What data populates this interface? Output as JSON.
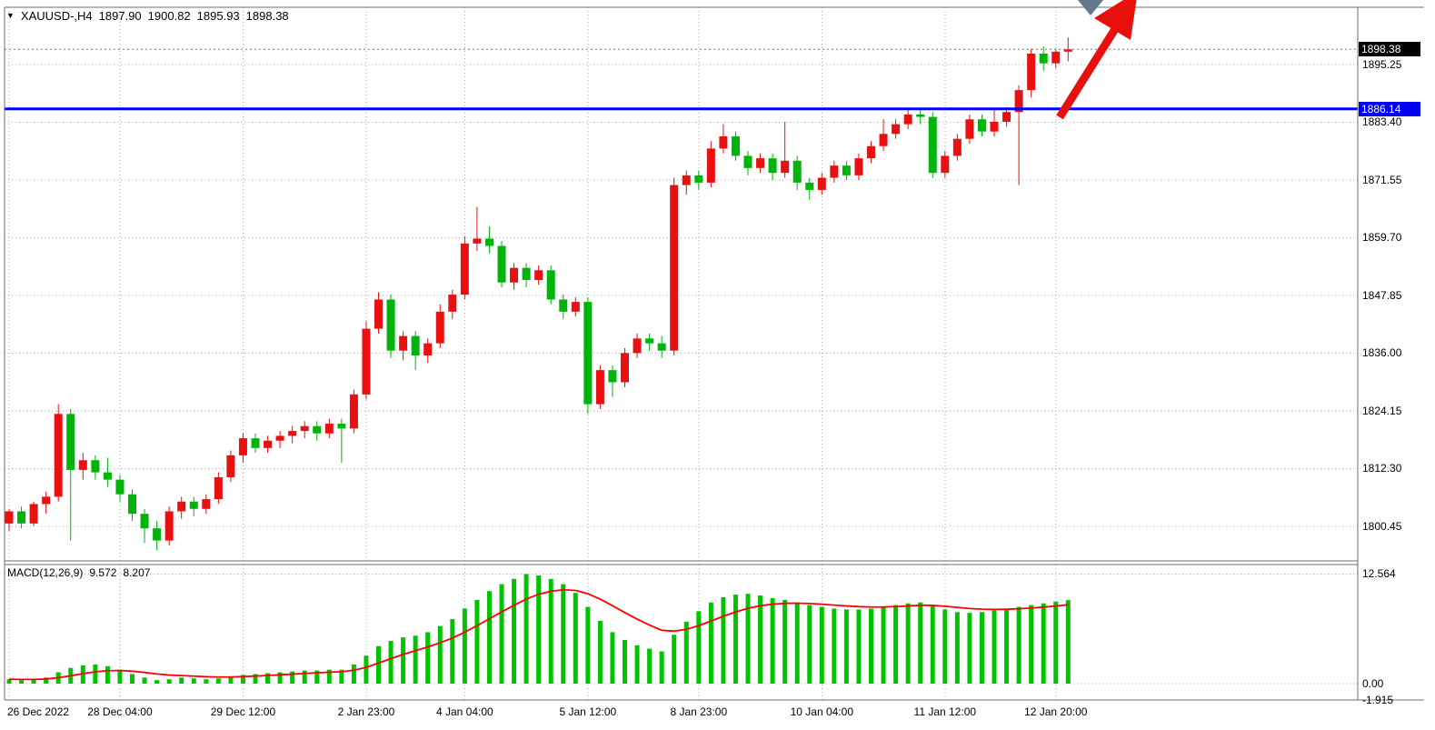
{
  "title": {
    "marker": "▼",
    "symbol_period": "XAUUSD-,H4",
    "open": "1897.90",
    "high": "1900.82",
    "low": "1895.93",
    "close": "1898.38"
  },
  "price_axis": {
    "current_price": "1898.38",
    "hline_price": "1886.14"
  },
  "macd": {
    "name_label": "MACD(12,26,9)",
    "macd_value": "9.572",
    "signal_value": "8.207",
    "axis_labels": [
      {
        "text": "12.564",
        "value": 12.564
      },
      {
        "text": "0.00",
        "value": 0
      },
      {
        "text": "-1.915",
        "value": -1.915
      }
    ]
  },
  "colors": {
    "bull_candle": "#e81010",
    "bear_candle": "#00b40c",
    "macd_histogram": "#00c400",
    "macd_signal": "#ff0000",
    "support_line": "#0000ff",
    "trend_arrow": "#e8100c",
    "current_price_badge": "#000000",
    "hline_badge": "#0000f0",
    "grid": "#a6a6a6"
  },
  "chart_data": {
    "type": "candlestick",
    "symbol": "XAUUSD-",
    "timeframe": "H4",
    "ohlc_current": {
      "open": 1897.9,
      "high": 1900.82,
      "low": 1895.93,
      "close": 1898.38
    },
    "current_price": 1898.38,
    "support_line_price": 1886.14,
    "price_gridlines": [
      1895.25,
      1883.4,
      1871.55,
      1859.7,
      1847.85,
      1836.0,
      1824.15,
      1812.3,
      1800.45
    ],
    "price_axis_range": [
      1793,
      1907
    ],
    "grid": "dotted",
    "candles": [
      [
        1801.0,
        1804.0,
        1799.5,
        1803.5
      ],
      [
        1803.5,
        1804.5,
        1800.0,
        1801.0
      ],
      [
        1801.0,
        1805.5,
        1800.5,
        1805.0
      ],
      [
        1805.0,
        1807.5,
        1803.0,
        1806.5
      ],
      [
        1806.5,
        1825.5,
        1805.5,
        1823.5
      ],
      [
        1823.5,
        1824.5,
        1797.5,
        1812.0
      ],
      [
        1812.0,
        1815.5,
        1810.0,
        1814.0
      ],
      [
        1814.0,
        1815.0,
        1810.0,
        1811.5
      ],
      [
        1811.5,
        1814.5,
        1808.5,
        1810.0
      ],
      [
        1810.0,
        1811.0,
        1805.5,
        1807.0
      ],
      [
        1807.0,
        1808.0,
        1801.5,
        1803.0
      ],
      [
        1803.0,
        1804.0,
        1797.0,
        1800.0
      ],
      [
        1800.0,
        1801.5,
        1795.5,
        1797.5
      ],
      [
        1797.5,
        1804.5,
        1796.5,
        1803.5
      ],
      [
        1803.5,
        1806.5,
        1802.0,
        1805.5
      ],
      [
        1805.5,
        1806.5,
        1802.5,
        1804.0
      ],
      [
        1804.0,
        1807.0,
        1803.0,
        1806.0
      ],
      [
        1806.0,
        1811.5,
        1805.0,
        1810.5
      ],
      [
        1810.5,
        1816.0,
        1809.5,
        1815.0
      ],
      [
        1815.0,
        1819.5,
        1813.5,
        1818.5
      ],
      [
        1818.5,
        1819.5,
        1815.5,
        1816.5
      ],
      [
        1816.5,
        1819.0,
        1815.5,
        1818.0
      ],
      [
        1818.0,
        1820.0,
        1816.5,
        1819.0
      ],
      [
        1819.0,
        1821.0,
        1817.5,
        1820.0
      ],
      [
        1820.0,
        1822.0,
        1818.5,
        1821.0
      ],
      [
        1821.0,
        1822.0,
        1818.0,
        1819.5
      ],
      [
        1819.5,
        1822.5,
        1818.5,
        1821.5
      ],
      [
        1821.5,
        1822.5,
        1813.5,
        1820.5
      ],
      [
        1820.5,
        1828.5,
        1819.5,
        1827.5
      ],
      [
        1827.5,
        1842.5,
        1826.5,
        1841.0
      ],
      [
        1841.0,
        1848.5,
        1840.0,
        1847.0
      ],
      [
        1847.0,
        1848.0,
        1835.0,
        1836.5
      ],
      [
        1836.5,
        1840.5,
        1834.5,
        1839.5
      ],
      [
        1839.5,
        1840.5,
        1832.5,
        1835.5
      ],
      [
        1835.5,
        1839.0,
        1834.0,
        1838.0
      ],
      [
        1838.0,
        1846.0,
        1837.0,
        1844.5
      ],
      [
        1844.5,
        1849.0,
        1843.0,
        1848.0
      ],
      [
        1848.0,
        1860.0,
        1847.0,
        1858.5
      ],
      [
        1858.5,
        1866.0,
        1857.0,
        1859.5
      ],
      [
        1859.5,
        1862.0,
        1856.5,
        1858.0
      ],
      [
        1858.0,
        1859.0,
        1849.5,
        1850.5
      ],
      [
        1850.5,
        1854.5,
        1849.0,
        1853.5
      ],
      [
        1853.5,
        1854.5,
        1849.5,
        1851.0
      ],
      [
        1851.0,
        1854.0,
        1850.0,
        1853.0
      ],
      [
        1853.0,
        1854.0,
        1846.0,
        1847.0
      ],
      [
        1847.0,
        1848.0,
        1843.0,
        1844.5
      ],
      [
        1844.5,
        1847.5,
        1843.5,
        1846.5
      ],
      [
        1846.5,
        1847.5,
        1823.5,
        1825.5
      ],
      [
        1825.5,
        1833.5,
        1824.5,
        1832.5
      ],
      [
        1832.5,
        1833.5,
        1827.0,
        1830.0
      ],
      [
        1830.0,
        1837.0,
        1829.0,
        1836.0
      ],
      [
        1836.0,
        1840.0,
        1835.0,
        1839.0
      ],
      [
        1839.0,
        1840.0,
        1836.5,
        1838.0
      ],
      [
        1838.0,
        1839.5,
        1835.0,
        1836.5
      ],
      [
        1836.5,
        1872.0,
        1835.5,
        1870.5
      ],
      [
        1870.5,
        1873.5,
        1868.5,
        1872.5
      ],
      [
        1872.5,
        1873.5,
        1869.5,
        1871.0
      ],
      [
        1871.0,
        1879.5,
        1870.0,
        1878.0
      ],
      [
        1878.0,
        1883.0,
        1877.0,
        1880.5
      ],
      [
        1880.5,
        1881.5,
        1875.5,
        1876.5
      ],
      [
        1876.5,
        1877.5,
        1872.5,
        1874.0
      ],
      [
        1874.0,
        1877.0,
        1873.0,
        1876.0
      ],
      [
        1876.0,
        1877.0,
        1871.5,
        1873.0
      ],
      [
        1873.0,
        1883.5,
        1872.0,
        1875.5
      ],
      [
        1875.5,
        1876.5,
        1869.5,
        1871.0
      ],
      [
        1871.0,
        1872.0,
        1867.5,
        1869.5
      ],
      [
        1869.5,
        1873.0,
        1868.5,
        1872.0
      ],
      [
        1872.0,
        1875.5,
        1871.0,
        1874.5
      ],
      [
        1874.5,
        1875.5,
        1871.5,
        1872.5
      ],
      [
        1872.5,
        1877.0,
        1871.5,
        1876.0
      ],
      [
        1876.0,
        1879.5,
        1875.0,
        1878.5
      ],
      [
        1878.5,
        1884.0,
        1877.5,
        1881.0
      ],
      [
        1881.0,
        1884.0,
        1880.0,
        1883.0
      ],
      [
        1883.0,
        1886.0,
        1882.0,
        1885.0
      ],
      [
        1885.0,
        1886.0,
        1883.0,
        1884.5
      ],
      [
        1884.5,
        1885.5,
        1872.0,
        1873.0
      ],
      [
        1873.0,
        1877.5,
        1872.0,
        1876.5
      ],
      [
        1876.5,
        1881.0,
        1875.5,
        1880.0
      ],
      [
        1880.0,
        1885.0,
        1879.0,
        1884.0
      ],
      [
        1884.0,
        1885.0,
        1880.5,
        1881.5
      ],
      [
        1881.5,
        1886.0,
        1880.5,
        1883.5
      ],
      [
        1883.5,
        1886.5,
        1882.5,
        1885.5
      ],
      [
        1885.5,
        1891.0,
        1870.5,
        1890.0
      ],
      [
        1890.0,
        1898.5,
        1888.5,
        1897.5
      ],
      [
        1897.5,
        1899.0,
        1894.0,
        1895.5
      ],
      [
        1895.5,
        1898.5,
        1894.5,
        1897.9
      ],
      [
        1897.9,
        1900.82,
        1895.93,
        1898.38
      ]
    ],
    "time_labels": [
      {
        "text": "26 Dec 2022",
        "index": 0
      },
      {
        "text": "28 Dec 04:00",
        "index": 9
      },
      {
        "text": "29 Dec 12:00",
        "index": 19
      },
      {
        "text": "2 Jan 23:00",
        "index": 29
      },
      {
        "text": "4 Jan 04:00",
        "index": 37
      },
      {
        "text": "5 Jan 12:00",
        "index": 47
      },
      {
        "text": "8 Jan 23:00",
        "index": 56
      },
      {
        "text": "10 Jan 04:00",
        "index": 66
      },
      {
        "text": "11 Jan 12:00",
        "index": 76
      },
      {
        "text": "12 Jan 20:00",
        "index": 85
      }
    ],
    "indicator": {
      "name": "MACD",
      "params": [
        12,
        26,
        9
      ],
      "current_macd": 9.572,
      "current_signal": 8.207,
      "signal_period": 9,
      "axis_max": 12.564,
      "axis_min": -1.915,
      "histogram": [
        0.5,
        0.4,
        0.5,
        0.7,
        1.3,
        1.8,
        2.1,
        2.2,
        2.0,
        1.6,
        1.1,
        0.7,
        0.4,
        0.5,
        0.7,
        0.6,
        0.5,
        0.6,
        0.8,
        1.0,
        1.1,
        1.2,
        1.3,
        1.4,
        1.5,
        1.5,
        1.6,
        1.6,
        2.2,
        3.2,
        4.3,
        4.9,
        5.3,
        5.5,
        5.9,
        6.6,
        7.4,
        8.6,
        9.6,
        10.6,
        11.4,
        12.0,
        12.56,
        12.4,
        12.0,
        11.4,
        10.4,
        8.8,
        7.2,
        5.9,
        5.0,
        4.4,
        4.0,
        3.7,
        5.6,
        7.1,
        8.3,
        9.3,
        9.9,
        10.2,
        10.3,
        10.1,
        9.8,
        9.6,
        9.3,
        9.0,
        8.8,
        8.6,
        8.5,
        8.5,
        8.6,
        8.8,
        9.0,
        9.2,
        9.3,
        8.9,
        8.5,
        8.2,
        8.1,
        8.2,
        8.4,
        8.6,
        8.8,
        9.0,
        9.2,
        9.4,
        9.572
      ]
    },
    "annotations": [
      {
        "type": "arrow",
        "direction": "up-right",
        "color": "#e8100c"
      },
      {
        "type": "horizontal-line",
        "price": 1886.14,
        "color": "#0000ff"
      }
    ]
  }
}
